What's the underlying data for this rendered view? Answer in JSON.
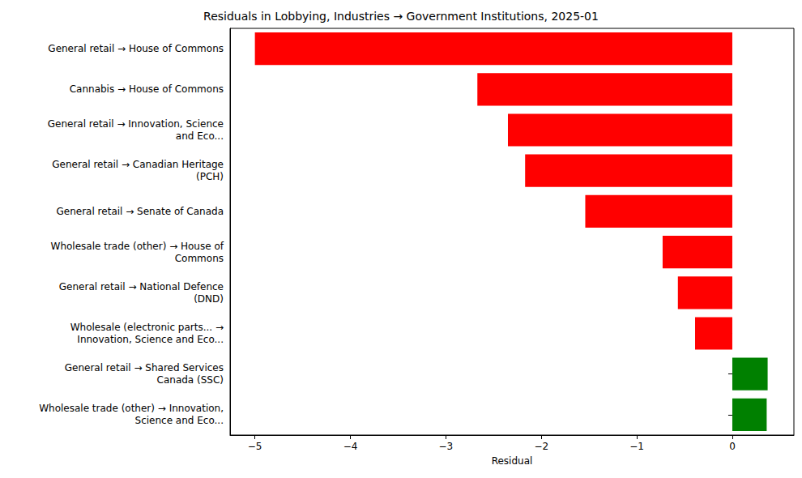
{
  "chart_data": {
    "type": "bar",
    "orientation": "horizontal",
    "title": "Residuals in Lobbying, Industries → Government Institutions, 2025-01",
    "x_label": "Residual",
    "categories": [
      "General retail → House of Commons",
      "Cannabis → House of Commons",
      "General retail → Innovation, Science\nand Eco...",
      "General retail → Canadian Heritage\n(PCH)",
      "General retail → Senate of Canada",
      "Wholesale trade (other) → House of\nCommons",
      "General retail → National Defence\n(DND)",
      "Wholesale (electronic parts... →\nInnovation, Science and Eco...",
      "General retail → Shared Services\nCanada (SSC)",
      "Wholesale trade (other) → Innovation,\nScience and Eco..."
    ],
    "values": [
      -5.0,
      -2.67,
      -2.35,
      -2.17,
      -1.54,
      -0.73,
      -0.57,
      -0.39,
      0.37,
      0.36
    ],
    "colors": [
      "#ff0000",
      "#ff0000",
      "#ff0000",
      "#ff0000",
      "#ff0000",
      "#ff0000",
      "#ff0000",
      "#ff0000",
      "#008000",
      "#008000"
    ],
    "xlim": [
      -5.26,
      0.645
    ],
    "xticks": [
      -5,
      -4,
      -3,
      -2,
      -1,
      0
    ],
    "grid": false
  }
}
